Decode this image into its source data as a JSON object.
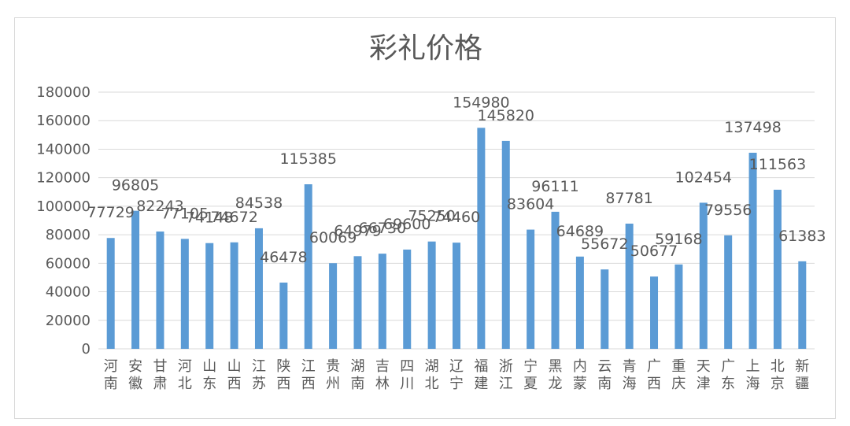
{
  "chart_data": {
    "type": "bar",
    "title": "彩礼价格",
    "xlabel": "",
    "ylabel": "",
    "ylim": [
      0,
      180000
    ],
    "yticks": [
      0,
      20000,
      40000,
      60000,
      80000,
      100000,
      120000,
      140000,
      160000,
      180000
    ],
    "grid": true,
    "legend": "none",
    "bar_color": "#5B9BD5",
    "categories": [
      "河南",
      "安徽",
      "甘肃",
      "河北",
      "山东",
      "山西",
      "江苏",
      "陕西",
      "江西",
      "贵州",
      "湖南",
      "吉林",
      "四川",
      "湖北",
      "辽宁",
      "福建",
      "浙江",
      "宁夏",
      "黑龙",
      "内蒙",
      "云南",
      "青海",
      "广西",
      "重庆",
      "天津",
      "广东",
      "上海",
      "北京",
      "新疆"
    ],
    "values": [
      77729,
      96805,
      82243,
      77105,
      74148,
      74672,
      84538,
      46478,
      115385,
      60069,
      64979,
      66730,
      69600,
      75250,
      74460,
      154980,
      145820,
      83604,
      96111,
      64689,
      55672,
      87781,
      50677,
      59168,
      102454,
      79556,
      137498,
      111563,
      61383
    ]
  }
}
